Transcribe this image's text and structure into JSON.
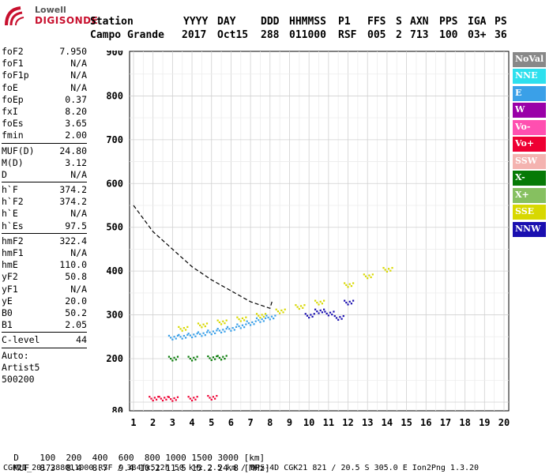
{
  "logo": {
    "brand_top": "Lowell",
    "brand_bottom": "DIGISONDE"
  },
  "header": {
    "row1": [
      "Station",
      "YYYY",
      "DAY",
      "DDD",
      "HHMMSS",
      "P1",
      "FFS",
      "S",
      "AXN",
      "PPS",
      "IGA",
      "PS"
    ],
    "row2": [
      "Campo Grande",
      "2017",
      "Oct15",
      "288",
      "011000",
      "RSF",
      "005",
      "2",
      "713",
      "100",
      "03+",
      "36"
    ]
  },
  "params": {
    "group1": [
      {
        "label": "foF2",
        "value": "7.950"
      },
      {
        "label": "foF1",
        "value": "N/A"
      },
      {
        "label": "foF1p",
        "value": "N/A"
      },
      {
        "label": "foE",
        "value": "N/A"
      },
      {
        "label": "foEp",
        "value": "0.37"
      },
      {
        "label": "fxI",
        "value": "8.20"
      },
      {
        "label": "foEs",
        "value": "3.65"
      },
      {
        "label": "fmin",
        "value": "2.00"
      }
    ],
    "group2": [
      {
        "label": "MUF(D)",
        "value": "24.80"
      },
      {
        "label": "M(D)",
        "value": "3.12"
      },
      {
        "label": "D",
        "value": "N/A"
      }
    ],
    "group3": [
      {
        "label": "h`F",
        "value": "374.2"
      },
      {
        "label": "h`F2",
        "value": "374.2"
      },
      {
        "label": "h`E",
        "value": "N/A"
      },
      {
        "label": "h`Es",
        "value": "97.5"
      }
    ],
    "group4": [
      {
        "label": "hmF2",
        "value": "322.4"
      },
      {
        "label": "hmF1",
        "value": "N/A"
      },
      {
        "label": "hmE",
        "value": "110.0"
      },
      {
        "label": "yF2",
        "value": "50.8"
      },
      {
        "label": "yF1",
        "value": "N/A"
      },
      {
        "label": "yE",
        "value": "20.0"
      },
      {
        "label": "B0",
        "value": "50.2"
      },
      {
        "label": "B1",
        "value": "2.05"
      }
    ],
    "group5": [
      {
        "label": "C-level",
        "value": "44"
      }
    ],
    "auto": {
      "line1": "Auto:",
      "line2": "Artist5",
      "line3": "500200"
    }
  },
  "legend": [
    {
      "label": "NoVal",
      "color": "#888888"
    },
    {
      "label": "NNE",
      "color": "#2ee0ee"
    },
    {
      "label": "E",
      "color": "#3aa0e8"
    },
    {
      "label": "W",
      "color": "#9a00a8"
    },
    {
      "label": "Vo-",
      "color": "#ff4fb0"
    },
    {
      "label": "Vo+",
      "color": "#ee0033"
    },
    {
      "label": "SSW",
      "color": "#f4b3b0"
    },
    {
      "label": "X-",
      "color": "#067a06"
    },
    {
      "label": "X+",
      "color": "#86c060"
    },
    {
      "label": "SSE",
      "color": "#d8d800"
    },
    {
      "label": "NNW",
      "color": "#1a0fb0"
    }
  ],
  "chart_data": {
    "type": "scatter",
    "x_ticks": [
      "1",
      "2",
      "3",
      "4",
      "5",
      "6",
      "7",
      "8",
      "9",
      "10",
      "11",
      "12",
      "13",
      "14",
      "15",
      "16",
      "17",
      "18",
      "19",
      "20"
    ],
    "y_ticks": [
      "80",
      "200",
      "300",
      "400",
      "500",
      "600",
      "700",
      "800",
      "900"
    ],
    "xlim": [
      1,
      20
    ],
    "ylim": [
      80,
      900
    ],
    "grid": true,
    "legend_position": "right",
    "series": [
      {
        "name": "E",
        "color": "#3aa0e8",
        "points": [
          [
            3.0,
            250
          ],
          [
            3.5,
            252
          ],
          [
            4.0,
            255
          ],
          [
            4.5,
            258
          ],
          [
            5.0,
            262
          ],
          [
            5.5,
            266
          ],
          [
            6.0,
            270
          ],
          [
            6.5,
            276
          ],
          [
            7.0,
            283
          ],
          [
            7.5,
            290
          ],
          [
            8.0,
            296
          ]
        ]
      },
      {
        "name": "SSE",
        "color": "#d8d800",
        "points": [
          [
            3.5,
            270
          ],
          [
            4.5,
            278
          ],
          [
            5.5,
            285
          ],
          [
            6.5,
            292
          ],
          [
            7.5,
            300
          ],
          [
            8.5,
            310
          ],
          [
            9.5,
            320
          ],
          [
            10.5,
            330
          ],
          [
            12,
            370
          ],
          [
            13,
            390
          ],
          [
            14,
            405
          ]
        ]
      },
      {
        "name": "NNW",
        "color": "#1a0fb0",
        "points": [
          [
            10,
            300
          ],
          [
            10.5,
            310
          ],
          [
            11,
            305
          ],
          [
            11.5,
            295
          ],
          [
            12,
            330
          ]
        ]
      },
      {
        "name": "X-",
        "color": "#067a06",
        "points": [
          [
            3.0,
            202
          ],
          [
            4.0,
            202
          ],
          [
            5.0,
            203
          ],
          [
            5.5,
            204
          ]
        ]
      },
      {
        "name": "Vo+",
        "color": "#ee0033",
        "points": [
          [
            2.0,
            110
          ],
          [
            2.5,
            110
          ],
          [
            3.0,
            109
          ],
          [
            4.0,
            110
          ],
          [
            5.0,
            112
          ]
        ]
      }
    ],
    "profile_curve": [
      [
        1,
        550
      ],
      [
        2,
        490
      ],
      [
        3,
        450
      ],
      [
        4,
        410
      ],
      [
        5,
        380
      ],
      [
        6,
        355
      ],
      [
        7,
        330
      ],
      [
        8,
        315
      ],
      [
        8.1,
        330
      ]
    ]
  },
  "footer": {
    "d_label": "D",
    "d_values": "100  200  400  600  800 1000 1500 3000 [km]",
    "muf_label": "MUF",
    "muf_values": "8.3  8.4  8.7  9.4 10.2 11.5 15.2 24.8 [MHz]",
    "info": "CGK21_2017288011000.RSF / 384fx512h 50 kHz 2.5 km / DPS-4D CGK21 821 / 20.5 S 305.0 E Ion2Png 1.3.20"
  }
}
